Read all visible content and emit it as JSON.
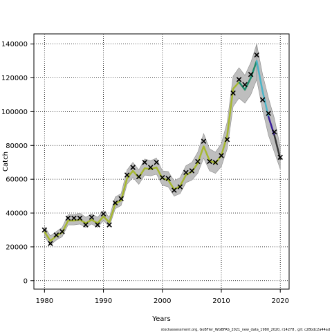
{
  "chart_data": {
    "type": "line",
    "xlabel": "Years",
    "ylabel": "Catch",
    "xlim": [
      1978.2,
      2021.5
    ],
    "ylim": [
      -5000,
      146000
    ],
    "x_ticks": [
      1980,
      1990,
      2000,
      2010,
      2020
    ],
    "y_ticks": [
      0,
      20000,
      40000,
      60000,
      80000,
      100000,
      120000,
      140000
    ],
    "y_tick_labels": [
      "0",
      "20000",
      "40000",
      "60000",
      "80000",
      "100000",
      "120000",
      "140000"
    ],
    "grid": true,
    "colors": {
      "band": "#bebebe",
      "band_edge": "#8c8c8c",
      "fit_line": "#a6b82f",
      "forecast_start": "#1f8a70",
      "forecast_mid": "#4bb5c8",
      "forecast_late": "#3a1f9a",
      "grid": "#000000"
    },
    "observed": {
      "x": [
        1980,
        1981,
        1982,
        1983,
        1984,
        1985,
        1986,
        1987,
        1988,
        1989,
        1990,
        1991,
        1992,
        1993,
        1994,
        1995,
        1996,
        1997,
        1998,
        1999,
        2000,
        2001,
        2002,
        2003,
        2004,
        2005,
        2006,
        2007,
        2008,
        2009,
        2010,
        2011,
        2012,
        2013,
        2014,
        2015,
        2016,
        2017,
        2018,
        2019,
        2020
      ],
      "y": [
        30000,
        22000,
        27000,
        29000,
        37000,
        37000,
        37000,
        33000,
        37500,
        33000,
        39500,
        33000,
        46000,
        48500,
        62500,
        67000,
        61500,
        70000,
        67000,
        70000,
        61000,
        60500,
        53500,
        55500,
        64000,
        65000,
        70500,
        82500,
        70500,
        70000,
        74000,
        83500,
        111000,
        119000,
        116000,
        122000,
        133500,
        107000,
        99000,
        88000,
        73000
      ]
    },
    "fitted": {
      "x": [
        1980,
        1981,
        1982,
        1983,
        1984,
        1985,
        1986,
        1987,
        1988,
        1989,
        1990,
        1991,
        1992,
        1993,
        1994,
        1995,
        1996,
        1997,
        1998,
        1999,
        2000,
        2001,
        2002,
        2003,
        2004,
        2005,
        2006,
        2007,
        2008,
        2009,
        2010,
        2011,
        2012,
        2013,
        2014,
        2015,
        2016
      ],
      "y": [
        29000,
        23500,
        26500,
        28500,
        35500,
        35500,
        36000,
        34000,
        36000,
        34000,
        38000,
        34500,
        45500,
        47500,
        60500,
        65000,
        61000,
        66500,
        66000,
        67000,
        60500,
        59500,
        54000,
        56000,
        62500,
        64500,
        69500,
        79500,
        71000,
        69500,
        74000,
        86000,
        113500,
        117500,
        113000,
        120000,
        130000
      ],
      "lower": [
        26000,
        21000,
        24000,
        26000,
        33000,
        33000,
        33500,
        31500,
        33500,
        31500,
        35500,
        32000,
        42500,
        44500,
        57000,
        61000,
        57000,
        62500,
        62000,
        63000,
        56500,
        55500,
        50000,
        51500,
        58000,
        59500,
        63500,
        72500,
        65000,
        63500,
        67500,
        78000,
        103000,
        108000,
        105000,
        110000,
        119000
      ],
      "upper": [
        32000,
        26500,
        29000,
        31500,
        39000,
        39000,
        40000,
        37500,
        39500,
        37500,
        41500,
        37500,
        49500,
        51500,
        65500,
        70000,
        65500,
        72000,
        71000,
        72500,
        65000,
        64500,
        59000,
        61000,
        68000,
        70000,
        76000,
        87000,
        78000,
        76000,
        81000,
        94000,
        121000,
        126000,
        121500,
        129000,
        140000
      ]
    },
    "forecast": {
      "x": [
        2016,
        2017,
        2018,
        2019,
        2020
      ],
      "y": [
        130000,
        112000,
        97000,
        86000,
        72000
      ],
      "lower": [
        119000,
        101000,
        86000,
        76000,
        66000
      ],
      "upper": [
        140000,
        122000,
        108000,
        96000,
        79000
      ]
    }
  },
  "footnote": "stockassessment.org, GoBFler_WGBFAS_2021_new_data_1980_2020, r14278 , git: c28bdc2a44ad"
}
